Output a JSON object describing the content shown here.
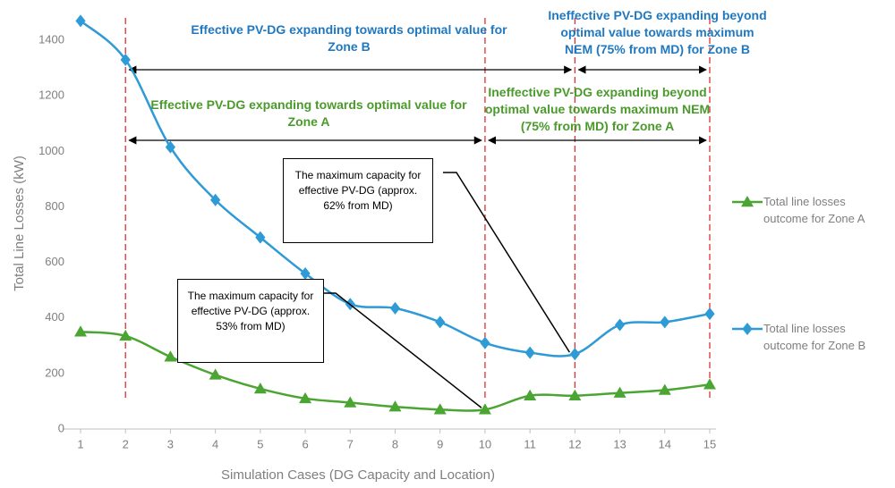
{
  "chart_data": {
    "type": "line",
    "x_label": "Simulation Cases (DG Capacity and Location)",
    "y_label": "Total Line Losses (kW)",
    "x": [
      1,
      2,
      3,
      4,
      5,
      6,
      7,
      8,
      9,
      10,
      11,
      12,
      13,
      14,
      15
    ],
    "xlim": [
      1,
      15
    ],
    "xticks": [
      1,
      2,
      3,
      4,
      5,
      6,
      7,
      8,
      9,
      10,
      11,
      12,
      13,
      14,
      15
    ],
    "ylim": [
      0,
      1500
    ],
    "yticks": [
      0,
      200,
      400,
      600,
      800,
      1000,
      1200,
      1400
    ],
    "smooth": true,
    "series": [
      {
        "name": "Total line losses outcome for Zone A",
        "color": "#4aa532",
        "marker": "triangle",
        "values": [
          350,
          335,
          260,
          195,
          145,
          110,
          95,
          80,
          70,
          70,
          120,
          120,
          130,
          140,
          160
        ]
      },
      {
        "name": "Total line losses outcome for Zone B",
        "color": "#2e9ad6",
        "marker": "diamond",
        "values": [
          1470,
          1330,
          1015,
          825,
          690,
          560,
          450,
          435,
          385,
          310,
          275,
          270,
          375,
          385,
          415
        ]
      }
    ],
    "reference_lines": [
      2,
      10,
      12,
      15
    ],
    "reference_line_color": "#e03030",
    "ranges": [
      {
        "from": 2,
        "to": 12,
        "zone": "B"
      },
      {
        "from": 12,
        "to": 15,
        "zone": "B"
      },
      {
        "from": 2,
        "to": 10,
        "zone": "A"
      },
      {
        "from": 10,
        "to": 15,
        "zone": "A"
      }
    ],
    "annotations": [
      {
        "text": "Effective PV-DG expanding towards optimal value for Zone B",
        "color": "#1f78c0"
      },
      {
        "text": "Ineffective PV-DG expanding beyond optimal value towards maximum NEM (75% from MD) for Zone B",
        "color": "#1f78c0"
      },
      {
        "text": "Effective PV-DG expanding towards optimal value for Zone A",
        "color": "#4a9a2c"
      },
      {
        "text": "Ineffective PV-DG expanding beyond optimal value towards maximum NEM (75% from MD) for Zone A",
        "color": "#4a9a2c"
      }
    ],
    "callouts": [
      {
        "text": "The maximum capacity for effective PV-DG (approx. 62% from MD)"
      },
      {
        "text": "The maximum capacity for effective PV-DG (approx. 53% from MD)"
      }
    ]
  }
}
